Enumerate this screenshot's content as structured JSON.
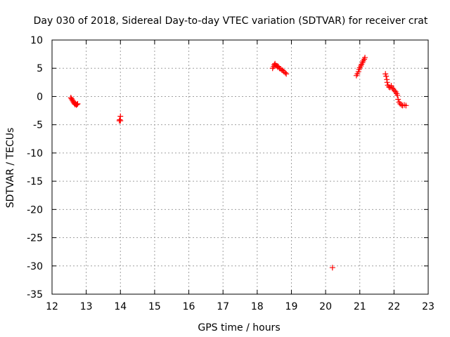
{
  "chart_data": {
    "type": "scatter",
    "title": "Day 030 of 2018, Sidereal Day-to-day VTEC variation (SDTVAR) for receiver crat",
    "xlabel": "GPS time / hours",
    "ylabel": "SDTVAR / TECUs",
    "xlim": [
      12,
      23
    ],
    "ylim": [
      -35,
      10
    ],
    "xticks": [
      "12",
      "13",
      "14",
      "15",
      "16",
      "17",
      "18",
      "19",
      "20",
      "21",
      "22",
      "23"
    ],
    "yticks": [
      "10",
      "5",
      "0",
      "-5",
      "-10",
      "-15",
      "-20",
      "-25",
      "-30",
      "-35"
    ],
    "grid": true,
    "marker": "+",
    "color": "#ff0000",
    "series": [
      {
        "name": "SDTVAR",
        "points": [
          [
            12.55,
            -0.2
          ],
          [
            12.57,
            -0.4
          ],
          [
            12.59,
            -0.6
          ],
          [
            12.61,
            -0.8
          ],
          [
            12.63,
            -1.0
          ],
          [
            12.65,
            -1.2
          ],
          [
            12.67,
            -1.4
          ],
          [
            12.69,
            -1.3
          ],
          [
            12.71,
            -1.5
          ],
          [
            12.73,
            -1.4
          ],
          [
            12.75,
            -1.3
          ],
          [
            13.97,
            -4.3
          ],
          [
            13.98,
            -4.1
          ],
          [
            14.0,
            -3.5
          ],
          [
            14.0,
            -4.3
          ],
          [
            18.45,
            5.0
          ],
          [
            18.48,
            5.3
          ],
          [
            18.5,
            5.6
          ],
          [
            18.52,
            5.8
          ],
          [
            18.55,
            5.5
          ],
          [
            18.58,
            5.4
          ],
          [
            18.6,
            5.2
          ],
          [
            18.62,
            5.3
          ],
          [
            18.65,
            5.0
          ],
          [
            18.68,
            4.9
          ],
          [
            18.72,
            4.7
          ],
          [
            18.75,
            4.6
          ],
          [
            18.78,
            4.4
          ],
          [
            18.82,
            4.2
          ],
          [
            18.85,
            4.0
          ],
          [
            20.2,
            -30.3
          ],
          [
            20.9,
            3.7
          ],
          [
            20.93,
            4.0
          ],
          [
            20.96,
            4.4
          ],
          [
            20.98,
            4.8
          ],
          [
            21.0,
            5.1
          ],
          [
            21.03,
            5.4
          ],
          [
            21.05,
            5.7
          ],
          [
            21.08,
            6.0
          ],
          [
            21.1,
            6.3
          ],
          [
            21.13,
            6.6
          ],
          [
            21.15,
            6.9
          ],
          [
            21.75,
            4.0
          ],
          [
            21.77,
            3.6
          ],
          [
            21.79,
            3.0
          ],
          [
            21.8,
            2.5
          ],
          [
            21.82,
            2.0
          ],
          [
            21.85,
            1.7
          ],
          [
            21.88,
            1.6
          ],
          [
            21.92,
            1.9
          ],
          [
            21.95,
            1.5
          ],
          [
            21.98,
            1.3
          ],
          [
            22.02,
            1.0
          ],
          [
            22.05,
            0.8
          ],
          [
            22.08,
            0.5
          ],
          [
            22.1,
            0.2
          ],
          [
            22.12,
            -0.5
          ],
          [
            22.15,
            -1.0
          ],
          [
            22.18,
            -1.3
          ],
          [
            22.22,
            -1.5
          ],
          [
            22.25,
            -1.6
          ],
          [
            22.3,
            -1.5
          ],
          [
            22.35,
            -1.6
          ]
        ]
      }
    ]
  }
}
